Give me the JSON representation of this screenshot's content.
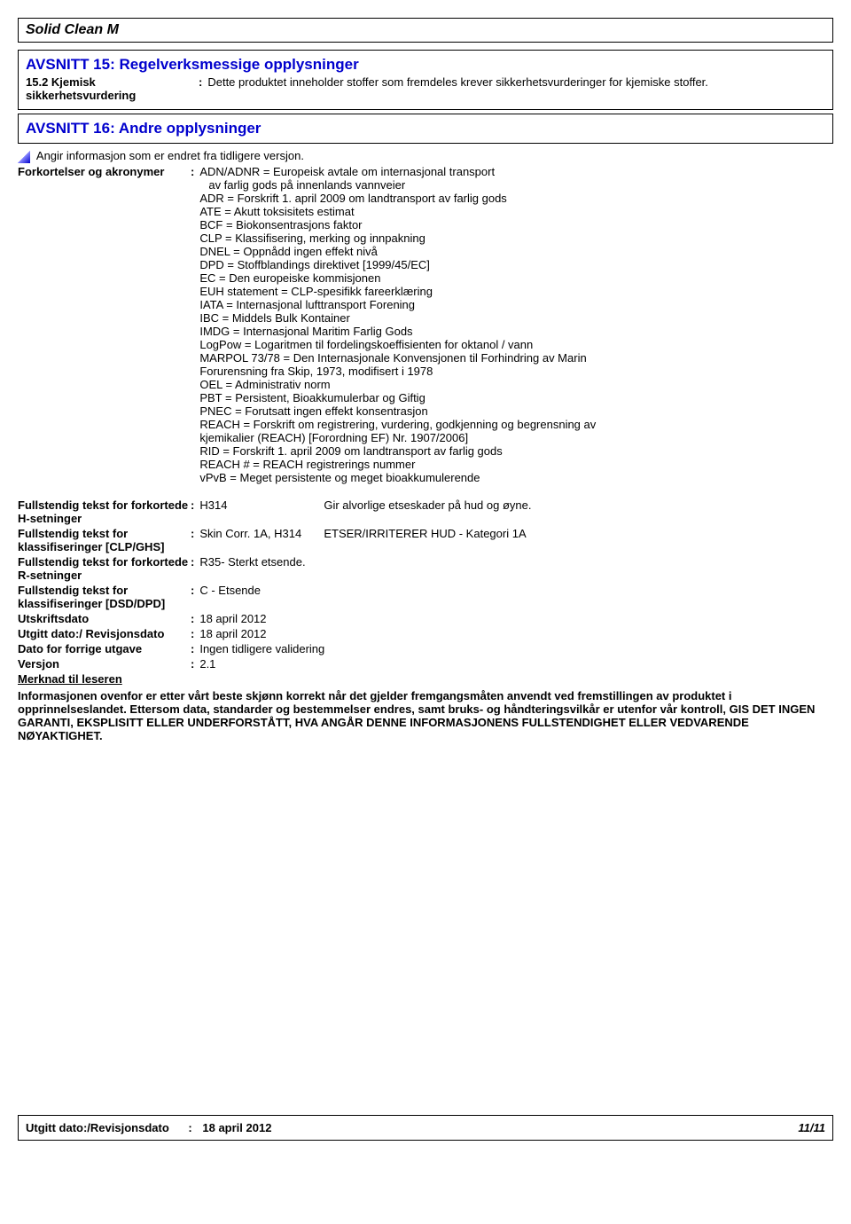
{
  "title": "Solid Clean M",
  "section15": {
    "heading": "AVSNITT 15: Regelverksmessige opplysninger",
    "label": "15.2 Kjemisk sikkerhetsvurdering",
    "value": "Dette produktet inneholder stoffer som fremdeles krever sikkerhetsvurderinger for kjemiske stoffer."
  },
  "section16": {
    "heading": "AVSNITT 16: Andre opplysninger",
    "change_note": "Angir informasjon som er endret fra tidligere versjon.",
    "acronyms_label": "Forkortelser og akronymer",
    "acronyms": [
      "ADN/ADNR = Europeisk avtale om internasjonal transport",
      "  av farlig gods på innenlands vannveier",
      "ADR = Forskrift 1. april 2009 om landtransport av farlig gods",
      "ATE = Akutt toksisitets estimat",
      "BCF = Biokonsentrasjons faktor",
      "CLP = Klassifisering, merking og innpakning",
      "DNEL = Oppnådd ingen effekt nivå",
      "DPD = Stoffblandings direktivet [1999/45/EC]",
      "EC = Den europeiske kommisjonen",
      "EUH statement = CLP-spesifikk fareerklæring",
      "IATA = Internasjonal lufttransport Forening",
      "IBC = Middels Bulk Kontainer",
      "IMDG = Internasjonal Maritim Farlig Gods",
      "LogPow = Logaritmen til fordelingskoeffisienten for oktanol / vann",
      "MARPOL 73/78 = Den Internasjonale Konvensjonen til Forhindring av Marin",
      "Forurensning fra Skip, 1973, modifisert i 1978",
      "OEL = Administrativ norm",
      "PBT = Persistent, Bioakkumulerbar og Giftig",
      "PNEC = Forutsatt ingen effekt konsentrasjon",
      "REACH = Forskrift om registrering, vurdering, godkjenning og begrensning av",
      "kjemikalier (REACH) [Forordning EF) Nr. 1907/2006]",
      "RID = Forskrift 1. april 2009 om landtransport av farlig gods",
      "REACH # = REACH registrerings nummer",
      "vPvB = Meget persistente og meget bioakkumulerende"
    ],
    "rows": [
      {
        "label": "Fullstendig tekst for forkortede H-setninger",
        "code": "H314",
        "desc": "Gir alvorlige etseskader på hud og øyne."
      },
      {
        "label": "Fullstendig tekst for klassifiseringer [CLP/GHS]",
        "code": "Skin Corr. 1A, H314",
        "desc": "ETSER/IRRITERER HUD - Kategori 1A"
      },
      {
        "label": "Fullstendig tekst for forkortede R-setninger",
        "code": "R35- Sterkt etsende.",
        "desc": ""
      },
      {
        "label": "Fullstendig tekst for klassifiseringer [DSD/DPD]",
        "code": "C - Etsende",
        "desc": ""
      },
      {
        "label": "Utskriftsdato",
        "code": "18 april 2012",
        "desc": ""
      },
      {
        "label": "Utgitt dato:/ Revisjonsdato",
        "code": "18 april 2012",
        "desc": ""
      },
      {
        "label": "Dato for forrige utgave",
        "code": "Ingen tidligere validering",
        "desc": ""
      },
      {
        "label": "Versjon",
        "code": "2.1",
        "desc": ""
      }
    ],
    "reader_note_label": "Merknad til leseren",
    "disclaimer": "Informasjonen ovenfor er etter vårt beste skjønn korrekt når det gjelder fremgangsmåten anvendt ved fremstillingen av produktet i opprinnelseslandet.  Ettersom data, standarder og bestemmelser endres, samt bruks- og håndteringsvilkår er utenfor vår kontroll, GIS DET INGEN GARANTI, EKSPLISITT ELLER UNDERFORSTÅTT, HVA ANGÅR DENNE INFORMASJONENS FULLSTENDIGHET ELLER VEDVARENDE NØYAKTIGHET."
  },
  "footer": {
    "label": "Utgitt dato:/Revisjonsdato",
    "value": "18 april 2012",
    "page": "11/11"
  }
}
